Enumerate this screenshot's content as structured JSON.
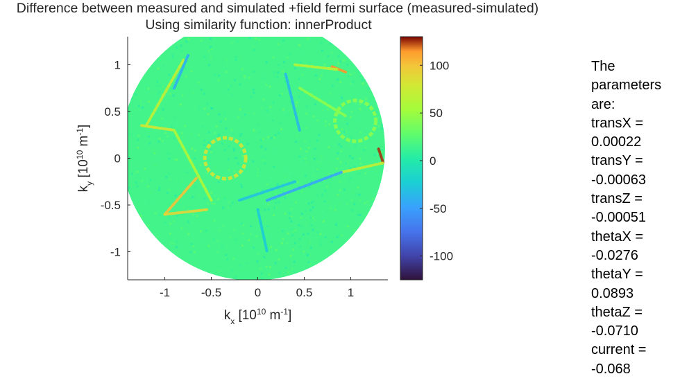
{
  "chart_data": {
    "type": "heatmap",
    "title_line1": "Difference between measured and simulated +field fermi surface (measured-simulated)",
    "title_line2": "Using similarity function: innerProduct",
    "xlabel": "k_x  [10^10  m^-1]",
    "ylabel": "k_y  [10^10  m^-1]",
    "xlim": [
      -1.4,
      1.4
    ],
    "ylim": [
      -1.3,
      1.3
    ],
    "xticks": [
      -1,
      -0.5,
      0,
      0.5,
      1
    ],
    "xtick_labels": [
      "-1",
      "-0.5",
      "0",
      "0.5",
      "1"
    ],
    "yticks": [
      1,
      0.5,
      0,
      -0.5,
      -1
    ],
    "ytick_labels": [
      "1",
      "0.5",
      "0",
      "-0.5",
      "-1"
    ],
    "colormap": "turbo",
    "clim": [
      -125,
      130
    ],
    "colorbar_ticks": [
      100,
      50,
      0,
      -50,
      -100
    ],
    "colorbar_tick_labels": [
      "100",
      "50",
      "0",
      "-50",
      "-100"
    ],
    "disk": {
      "center": [
        -0.05,
        0.1
      ],
      "radius": 1.42
    },
    "background_value": 15,
    "features": [
      {
        "kind": "ring",
        "center": [
          -0.35,
          0.0
        ],
        "radius": 0.22,
        "value": 80
      },
      {
        "kind": "line",
        "from": [
          -0.8,
          1.05
        ],
        "to": [
          -1.2,
          0.35
        ],
        "value": 70
      },
      {
        "kind": "line",
        "from": [
          -1.25,
          0.35
        ],
        "to": [
          -0.9,
          0.3
        ],
        "value": 80
      },
      {
        "kind": "line",
        "from": [
          -0.9,
          0.3
        ],
        "to": [
          -0.5,
          -0.45
        ],
        "value": 60
      },
      {
        "kind": "line",
        "from": [
          -1.0,
          -0.6
        ],
        "to": [
          -0.65,
          -0.2
        ],
        "value": 100
      },
      {
        "kind": "line",
        "from": [
          -1.0,
          -0.6
        ],
        "to": [
          -0.55,
          -0.55
        ],
        "value": 90
      },
      {
        "kind": "line",
        "from": [
          0.8,
          0.98
        ],
        "to": [
          0.95,
          0.92
        ],
        "value": 115
      },
      {
        "kind": "line",
        "from": [
          0.4,
          1.0
        ],
        "to": [
          0.85,
          0.95
        ],
        "value": 65
      },
      {
        "kind": "line",
        "from": [
          0.45,
          0.75
        ],
        "to": [
          0.95,
          0.45
        ],
        "value": 45
      },
      {
        "kind": "line",
        "from": [
          1.3,
          0.1
        ],
        "to": [
          1.35,
          -0.05
        ],
        "value": 125
      },
      {
        "kind": "line",
        "from": [
          0.9,
          -0.15
        ],
        "to": [
          1.35,
          -0.05
        ],
        "value": 70
      },
      {
        "kind": "line",
        "from": [
          0.1,
          -0.45
        ],
        "to": [
          0.9,
          -0.15
        ],
        "value": -45
      },
      {
        "kind": "line",
        "from": [
          0.3,
          0.9
        ],
        "to": [
          0.45,
          0.3
        ],
        "value": -35
      },
      {
        "kind": "line",
        "from": [
          -0.2,
          -0.45
        ],
        "to": [
          0.4,
          -0.25
        ],
        "value": -30
      },
      {
        "kind": "line",
        "from": [
          0.0,
          -0.55
        ],
        "to": [
          0.1,
          -1.0
        ],
        "value": -25
      },
      {
        "kind": "line",
        "from": [
          -0.9,
          0.75
        ],
        "to": [
          -0.75,
          1.1
        ],
        "value": -40
      },
      {
        "kind": "ring",
        "center": [
          1.05,
          0.4
        ],
        "radius": 0.22,
        "value": 45
      }
    ]
  },
  "parameters_text": "The\nparameters\nare:\ntransX =\n0.00022\ntransY =\n-0.00063\ntransZ =\n-0.00051\nthetaX =\n-0.0276\nthetaY =\n0.0893\nthetaZ =\n-0.0710\ncurrent =\n-0.068"
}
